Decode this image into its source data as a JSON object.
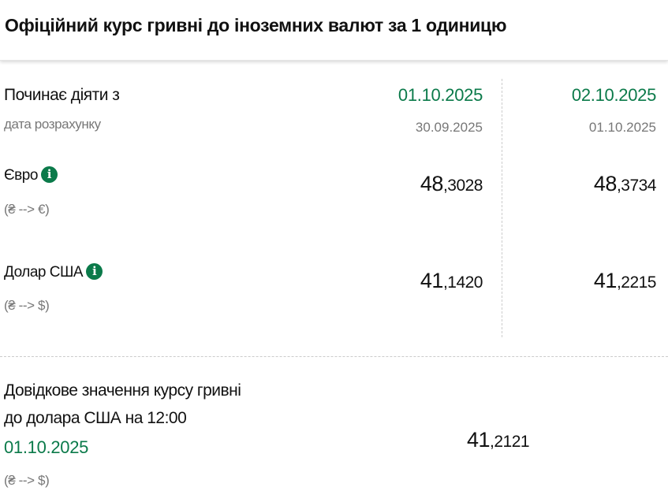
{
  "title": "Офіційний курс гривні до іноземних валют за 1 одиницю",
  "header_row": {
    "label": "Починає діяти з",
    "sublabel": "дата розрахунку"
  },
  "columns": [
    {
      "effective_date": "01.10.2025",
      "calc_date": "30.09.2025"
    },
    {
      "effective_date": "02.10.2025",
      "calc_date": "01.10.2025"
    }
  ],
  "currencies": [
    {
      "name": "Євро",
      "pair": "(₴ --> €)",
      "icon": "info-icon",
      "rates": [
        {
          "int": "48",
          "frac": ",3028"
        },
        {
          "int": "48",
          "frac": ",3734"
        }
      ]
    },
    {
      "name": "Долар США",
      "pair": "(₴ --> $)",
      "icon": "info-icon",
      "rates": [
        {
          "int": "41",
          "frac": ",1420"
        },
        {
          "int": "41",
          "frac": ",2215"
        }
      ]
    }
  ],
  "reference": {
    "line1": "Довідкове значення курсу гривні",
    "line2": "до долара США на 12:00",
    "date": "01.10.2025",
    "pair": "(₴ --> $)",
    "rate": {
      "int": "41",
      "frac": ",2121"
    }
  },
  "colors": {
    "accent": "#0b7a4a"
  }
}
